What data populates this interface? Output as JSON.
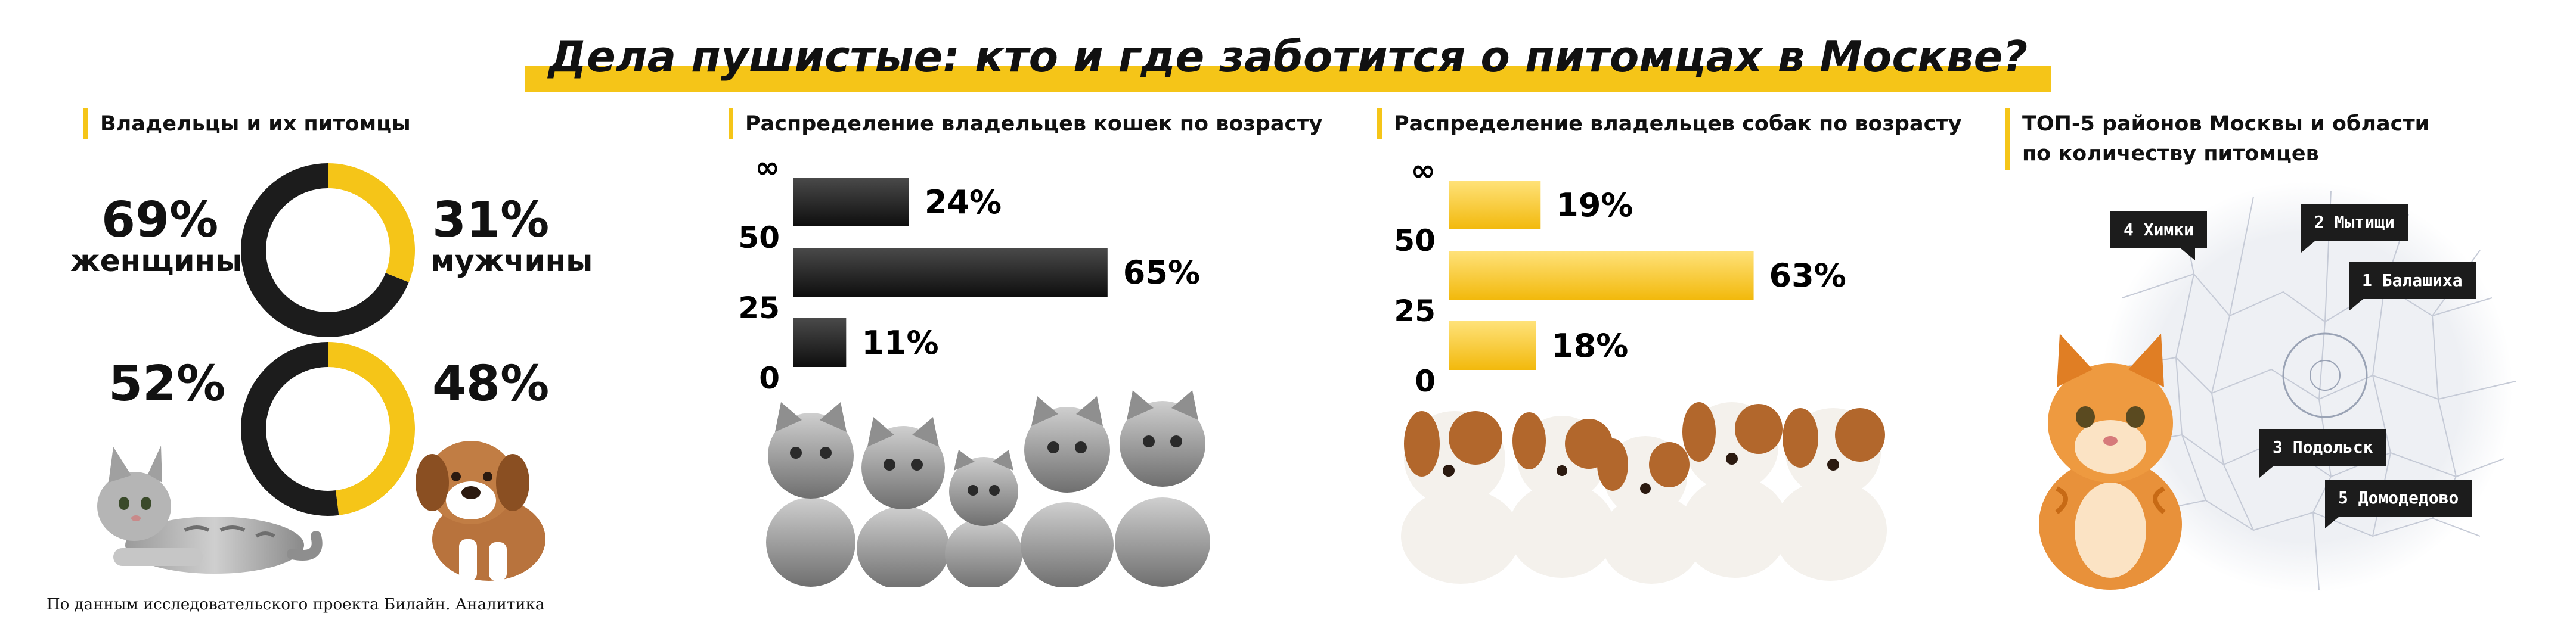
{
  "title": "Дела пушистые: кто и где заботится о питомцах в Москве?",
  "colors": {
    "accent": "#f5c518",
    "dark": "#1c1c1c"
  },
  "owners": {
    "heading": "Владельцы и их питомцы",
    "women_pct": "69%",
    "women_label": "женщины",
    "men_pct": "31%",
    "men_label": "мужчины",
    "left_pct": "52%",
    "right_pct": "48%"
  },
  "chart_data": [
    {
      "type": "pie",
      "title": "",
      "series": [
        {
          "name": "женщины",
          "value": 69
        },
        {
          "name": "мужчины",
          "value": 31
        }
      ]
    },
    {
      "type": "pie",
      "title": "",
      "series": [
        {
          "name": "",
          "value": 52
        },
        {
          "name": "",
          "value": 48
        }
      ]
    },
    {
      "type": "bar",
      "orientation": "horizontal",
      "title": "Распределение владельцев кошек по возрасту",
      "categories": [
        "0–25",
        "25–50",
        "50–∞"
      ],
      "values": [
        11,
        65,
        24
      ],
      "labels": [
        "11%",
        "65%",
        "24%"
      ],
      "ticks": [
        "0",
        "25",
        "50",
        "∞"
      ],
      "color": "#1c1c1c"
    },
    {
      "type": "bar",
      "orientation": "horizontal",
      "title": "Распределение владельцев собак по возрасту",
      "categories": [
        "0–25",
        "25–50",
        "50–∞"
      ],
      "values": [
        18,
        63,
        19
      ],
      "labels": [
        "18%",
        "63%",
        "19%"
      ],
      "ticks": [
        "0",
        "25",
        "50",
        "∞"
      ],
      "color": "#f5c518"
    }
  ],
  "top5": {
    "heading_line1": "ТОП-5 районов Москвы и области",
    "heading_line2": "по количеству питомцев",
    "districts": [
      {
        "label": "1 Балашиха"
      },
      {
        "label": "2 Мытищи"
      },
      {
        "label": "3 Подольск"
      },
      {
        "label": "4 Химки"
      },
      {
        "label": "5 Домодедово"
      }
    ]
  },
  "icons": {
    "cat_lying": "cat-lying-illustration",
    "puppy": "puppy-illustration",
    "kittens": "kittens-group-illustration",
    "puppies": "puppies-group-illustration",
    "orange_kitten": "orange-kitten-illustration",
    "map": "moscow-region-map"
  },
  "footnote": "По данным исследовательского проекта Билайн. Аналитика"
}
